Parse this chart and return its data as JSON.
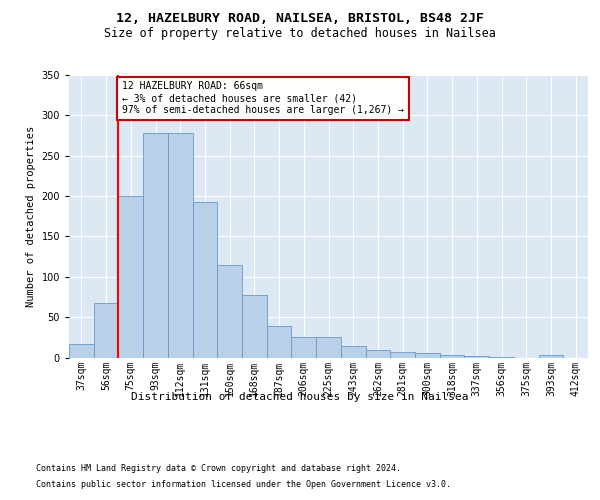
{
  "title1": "12, HAZELBURY ROAD, NAILSEA, BRISTOL, BS48 2JF",
  "title2": "Size of property relative to detached houses in Nailsea",
  "xlabel": "Distribution of detached houses by size in Nailsea",
  "ylabel": "Number of detached properties",
  "footer1": "Contains HM Land Registry data © Crown copyright and database right 2024.",
  "footer2": "Contains public sector information licensed under the Open Government Licence v3.0.",
  "bin_labels": [
    "37sqm",
    "56sqm",
    "75sqm",
    "93sqm",
    "112sqm",
    "131sqm",
    "150sqm",
    "168sqm",
    "187sqm",
    "206sqm",
    "225sqm",
    "243sqm",
    "262sqm",
    "281sqm",
    "300sqm",
    "318sqm",
    "337sqm",
    "356sqm",
    "375sqm",
    "393sqm",
    "412sqm"
  ],
  "bar_values": [
    17,
    68,
    200,
    278,
    278,
    193,
    114,
    78,
    39,
    25,
    25,
    14,
    9,
    7,
    6,
    3,
    2,
    1,
    0,
    3,
    0
  ],
  "bar_color": "#b8d0e8",
  "bar_edge_color": "#6699cc",
  "annotation_box_text": "12 HAZELBURY ROAD: 66sqm\n← 3% of detached houses are smaller (42)\n97% of semi-detached houses are larger (1,267) →",
  "annotation_box_color": "white",
  "annotation_box_edge_color": "#cc0000",
  "red_line_x": 1.5,
  "ylim": [
    0,
    350
  ],
  "yticks": [
    0,
    50,
    100,
    150,
    200,
    250,
    300,
    350
  ],
  "plot_bg_color": "#dde8f5",
  "title1_fontsize": 9.5,
  "title2_fontsize": 8.5,
  "xlabel_fontsize": 8,
  "ylabel_fontsize": 7.5,
  "tick_fontsize": 7,
  "footer_fontsize": 6,
  "ann_fontsize": 7
}
